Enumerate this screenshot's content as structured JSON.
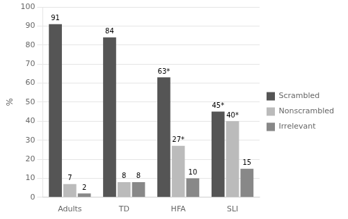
{
  "chart_data": {
    "type": "bar",
    "categories": [
      "Adults",
      "TD",
      "HFA",
      "SLI"
    ],
    "series": [
      {
        "name": "Scrambled",
        "color": "#555555",
        "values": [
          91,
          84,
          63,
          45
        ],
        "value_labels": [
          "91",
          "84",
          "63*",
          "45*"
        ]
      },
      {
        "name": "Nonscrambled",
        "color": "#bbbbbb",
        "values": [
          7,
          8,
          27,
          40
        ],
        "value_labels": [
          "7",
          "8",
          "27*",
          "40*"
        ]
      },
      {
        "name": "Irrelevant",
        "color": "#888888",
        "values": [
          2,
          8,
          10,
          15
        ],
        "value_labels": [
          "2",
          "8",
          "10",
          "15"
        ]
      }
    ],
    "ylabel": "%",
    "ylim": [
      0,
      100
    ],
    "yticks": [
      0,
      10,
      20,
      30,
      40,
      50,
      60,
      70,
      80,
      90,
      100
    ],
    "grid": true,
    "legend": "right",
    "data_labels": true
  }
}
